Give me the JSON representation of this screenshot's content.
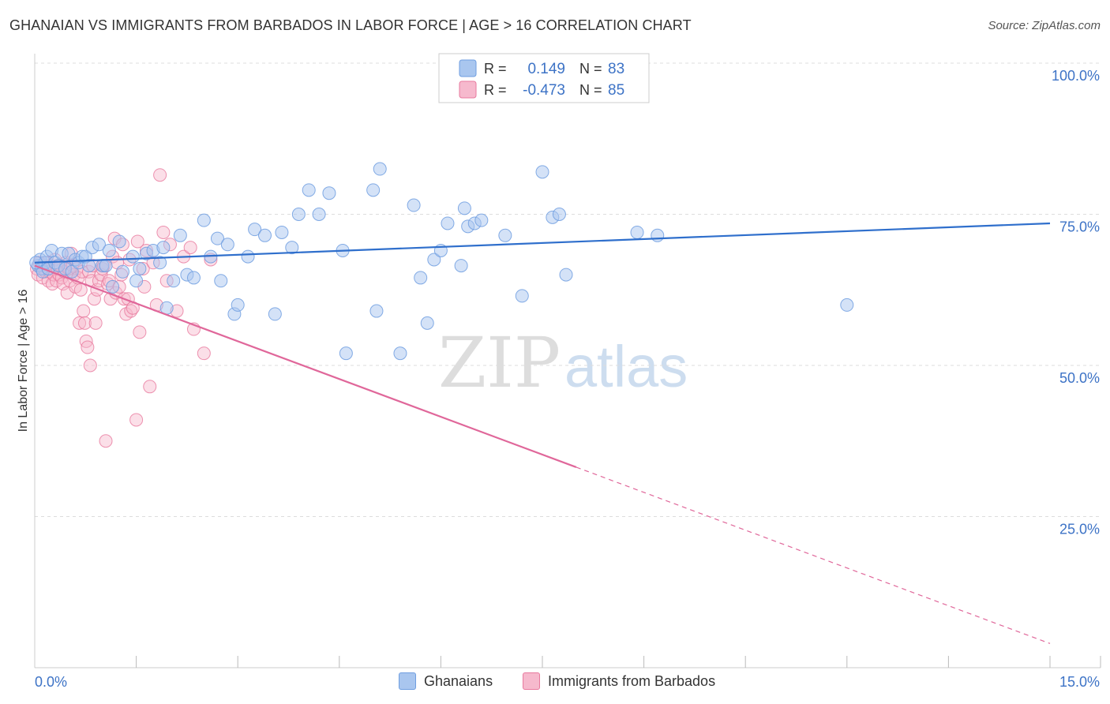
{
  "header": {
    "title": "GHANAIAN VS IMMIGRANTS FROM BARBADOS IN LABOR FORCE | AGE > 16 CORRELATION CHART",
    "source": "Source: ZipAtlas.com"
  },
  "watermark": {
    "part1": "ZIP",
    "part2": "atlas"
  },
  "colors": {
    "blue_fill": "#a9c6ef",
    "blue_stroke": "#6f9ee0",
    "blue_line": "#2f6fcc",
    "pink_fill": "#f6b9cd",
    "pink_stroke": "#e8799e",
    "pink_line": "#e0679a",
    "axis_label": "#3d73c6",
    "grid": "#dddddd"
  },
  "legend": {
    "rows": [
      {
        "r_label": "R =",
        "r_value": "0.149",
        "n_label": "N =",
        "n_value": "83"
      },
      {
        "r_label": "R =",
        "r_value": "-0.473",
        "n_label": "N =",
        "n_value": "85"
      }
    ]
  },
  "bottom_legend": {
    "series1": "Ghanaians",
    "series2": "Immigrants from Barbados"
  },
  "chart_data": {
    "type": "scatter",
    "title": "GHANAIAN VS IMMIGRANTS FROM BARBADOS IN LABOR FORCE | AGE > 16 CORRELATION CHART",
    "xlabel": "",
    "ylabel": "In Labor Force | Age > 16",
    "xlim": [
      0,
      15
    ],
    "ylim": [
      0,
      100
    ],
    "x_tick_labels": [
      "0.0%",
      "15.0%"
    ],
    "y_tick_values": [
      25,
      50,
      75,
      100
    ],
    "y_tick_labels": [
      "25.0%",
      "50.0%",
      "75.0%",
      "100.0%"
    ],
    "grid": true,
    "legend_position": "top-center",
    "series": [
      {
        "name": "Ghanaians",
        "r": 0.149,
        "n": 83,
        "trendline": {
          "x": [
            0,
            15
          ],
          "y": [
            67.0,
            73.5
          ],
          "dashed_after_x": null
        },
        "points": [
          [
            0.05,
            66.5
          ],
          [
            0.08,
            67.5
          ],
          [
            0.1,
            66.0
          ],
          [
            0.12,
            65.5
          ],
          [
            0.15,
            67.0
          ],
          [
            0.18,
            68.0
          ],
          [
            0.2,
            66.0
          ],
          [
            0.25,
            69.0
          ],
          [
            0.3,
            67.0
          ],
          [
            0.35,
            66.5
          ],
          [
            0.4,
            68.5
          ],
          [
            0.45,
            66.0
          ],
          [
            0.5,
            68.5
          ],
          [
            0.55,
            65.5
          ],
          [
            0.6,
            67.5
          ],
          [
            0.65,
            67.0
          ],
          [
            0.7,
            68.0
          ],
          [
            0.75,
            68.0
          ],
          [
            0.8,
            66.5
          ],
          [
            0.85,
            69.5
          ],
          [
            0.95,
            70.0
          ],
          [
            1.0,
            66.5
          ],
          [
            1.05,
            66.5
          ],
          [
            1.1,
            69.0
          ],
          [
            1.15,
            63.0
          ],
          [
            1.25,
            70.5
          ],
          [
            1.3,
            65.5
          ],
          [
            1.45,
            68.0
          ],
          [
            1.5,
            64.0
          ],
          [
            1.55,
            66.0
          ],
          [
            1.65,
            68.5
          ],
          [
            1.75,
            69.0
          ],
          [
            1.85,
            67.0
          ],
          [
            1.9,
            69.5
          ],
          [
            1.95,
            59.5
          ],
          [
            2.05,
            64.0
          ],
          [
            2.15,
            71.5
          ],
          [
            2.25,
            65.0
          ],
          [
            2.35,
            64.5
          ],
          [
            2.5,
            74.0
          ],
          [
            2.6,
            68.0
          ],
          [
            2.7,
            71.0
          ],
          [
            2.75,
            64.0
          ],
          [
            2.85,
            70.0
          ],
          [
            2.95,
            58.5
          ],
          [
            3.0,
            60.0
          ],
          [
            3.15,
            68.0
          ],
          [
            3.25,
            72.5
          ],
          [
            3.4,
            71.5
          ],
          [
            3.55,
            58.5
          ],
          [
            3.65,
            72.0
          ],
          [
            3.8,
            69.5
          ],
          [
            3.9,
            75.0
          ],
          [
            4.05,
            79.0
          ],
          [
            4.2,
            75.0
          ],
          [
            4.35,
            78.5
          ],
          [
            4.55,
            69.0
          ],
          [
            4.6,
            52.0
          ],
          [
            5.0,
            79.0
          ],
          [
            5.1,
            82.5
          ],
          [
            5.05,
            59.0
          ],
          [
            5.4,
            52.0
          ],
          [
            5.6,
            76.5
          ],
          [
            5.7,
            64.5
          ],
          [
            5.8,
            57.0
          ],
          [
            5.9,
            67.5
          ],
          [
            6.0,
            69.0
          ],
          [
            6.1,
            73.5
          ],
          [
            6.3,
            66.5
          ],
          [
            6.35,
            76.0
          ],
          [
            6.4,
            73.0
          ],
          [
            6.5,
            73.5
          ],
          [
            6.6,
            74.0
          ],
          [
            6.95,
            71.5
          ],
          [
            7.2,
            61.5
          ],
          [
            7.5,
            82.0
          ],
          [
            7.65,
            74.5
          ],
          [
            7.75,
            75.0
          ],
          [
            7.85,
            65.0
          ],
          [
            8.9,
            72.0
          ],
          [
            9.2,
            71.5
          ],
          [
            12.0,
            60.0
          ],
          [
            0.02,
            67.0
          ]
        ]
      },
      {
        "name": "Immigrants from Barbados",
        "r": -0.473,
        "n": 85,
        "trendline": {
          "x": [
            0,
            15
          ],
          "y": [
            66.5,
            4.0
          ],
          "dashed_after_x": 8.0
        },
        "points": [
          [
            0.03,
            66.0
          ],
          [
            0.05,
            65.0
          ],
          [
            0.07,
            67.0
          ],
          [
            0.1,
            66.5
          ],
          [
            0.12,
            64.5
          ],
          [
            0.14,
            66.0
          ],
          [
            0.16,
            65.5
          ],
          [
            0.18,
            67.0
          ],
          [
            0.2,
            64.0
          ],
          [
            0.22,
            65.5
          ],
          [
            0.24,
            66.5
          ],
          [
            0.26,
            63.5
          ],
          [
            0.28,
            65.0
          ],
          [
            0.3,
            67.5
          ],
          [
            0.32,
            64.0
          ],
          [
            0.34,
            66.0
          ],
          [
            0.36,
            65.0
          ],
          [
            0.38,
            66.5
          ],
          [
            0.4,
            64.5
          ],
          [
            0.42,
            63.5
          ],
          [
            0.44,
            65.5
          ],
          [
            0.46,
            67.0
          ],
          [
            0.48,
            62.0
          ],
          [
            0.5,
            66.0
          ],
          [
            0.52,
            64.0
          ],
          [
            0.54,
            68.5
          ],
          [
            0.56,
            66.5
          ],
          [
            0.58,
            65.0
          ],
          [
            0.6,
            63.0
          ],
          [
            0.62,
            66.0
          ],
          [
            0.64,
            64.5
          ],
          [
            0.66,
            57.0
          ],
          [
            0.68,
            62.5
          ],
          [
            0.7,
            65.5
          ],
          [
            0.72,
            59.0
          ],
          [
            0.74,
            57.0
          ],
          [
            0.76,
            54.0
          ],
          [
            0.78,
            53.0
          ],
          [
            0.8,
            65.5
          ],
          [
            0.82,
            50.0
          ],
          [
            0.84,
            64.0
          ],
          [
            0.86,
            66.5
          ],
          [
            0.88,
            61.0
          ],
          [
            0.9,
            57.0
          ],
          [
            0.92,
            62.5
          ],
          [
            0.95,
            64.0
          ],
          [
            0.98,
            65.0
          ],
          [
            1.0,
            66.0
          ],
          [
            1.02,
            66.5
          ],
          [
            1.05,
            37.5
          ],
          [
            1.08,
            63.5
          ],
          [
            1.1,
            64.0
          ],
          [
            1.12,
            61.0
          ],
          [
            1.15,
            68.0
          ],
          [
            1.18,
            71.0
          ],
          [
            1.2,
            62.0
          ],
          [
            1.22,
            67.0
          ],
          [
            1.25,
            63.0
          ],
          [
            1.28,
            65.0
          ],
          [
            1.3,
            70.0
          ],
          [
            1.32,
            61.0
          ],
          [
            1.35,
            58.5
          ],
          [
            1.38,
            61.0
          ],
          [
            1.4,
            67.5
          ],
          [
            1.42,
            59.0
          ],
          [
            1.45,
            59.5
          ],
          [
            1.5,
            41.0
          ],
          [
            1.52,
            70.5
          ],
          [
            1.55,
            55.5
          ],
          [
            1.6,
            66.0
          ],
          [
            1.62,
            63.0
          ],
          [
            1.65,
            69.0
          ],
          [
            1.7,
            46.5
          ],
          [
            1.75,
            67.0
          ],
          [
            1.8,
            60.0
          ],
          [
            1.85,
            81.5
          ],
          [
            1.9,
            72.0
          ],
          [
            1.95,
            64.0
          ],
          [
            2.0,
            70.0
          ],
          [
            2.1,
            59.0
          ],
          [
            2.2,
            68.0
          ],
          [
            2.3,
            69.5
          ],
          [
            2.35,
            56.0
          ],
          [
            2.5,
            52.0
          ],
          [
            2.6,
            67.5
          ]
        ]
      }
    ]
  }
}
